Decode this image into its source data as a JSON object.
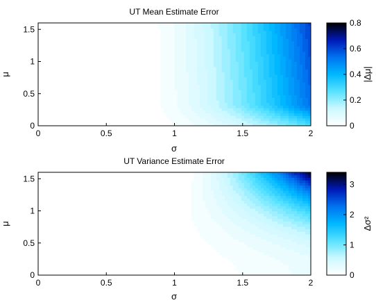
{
  "chart_data": [
    {
      "type": "heatmap",
      "subtype": "filled-contour",
      "title": "UT Mean Estimate Error",
      "xlabel": "σ",
      "ylabel": "μ",
      "xlim": [
        0,
        2
      ],
      "ylim": [
        0,
        1.6
      ],
      "x_ticks": [
        "0",
        "0.5",
        "1",
        "1.5",
        "2"
      ],
      "y_ticks": [
        "0",
        "0.5",
        "1",
        "1.5"
      ],
      "colorbar": {
        "label": "|Δμ|",
        "range": [
          0,
          0.8
        ],
        "ticks": [
          "0",
          "0.2",
          "0.4",
          "0.6",
          "0.8"
        ]
      },
      "colormap": [
        "#ffffff",
        "#ccf8ff",
        "#59e2ff",
        "#00b8ff",
        "#0073f0",
        "#0019b8",
        "#000000"
      ],
      "contour_levels": 30,
      "sample_values": [
        {
          "x": 0.7,
          "y": 1.55,
          "value": 0.0
        },
        {
          "x": 1.0,
          "y": 0.5,
          "value": 0.06
        },
        {
          "x": 1.5,
          "y": 0.3,
          "value": 0.18
        },
        {
          "x": 2.0,
          "y": 0.3,
          "value": 0.33
        },
        {
          "x": 2.0,
          "y": 1.55,
          "value": 0.6
        }
      ]
    },
    {
      "type": "heatmap",
      "subtype": "filled-contour",
      "title": "UT Variance Estimate Error",
      "xlabel": "σ",
      "ylabel": "μ",
      "xlim": [
        0,
        2
      ],
      "ylim": [
        0,
        1.6
      ],
      "x_ticks": [
        "0",
        "0.5",
        "1",
        "1.5",
        "2"
      ],
      "y_ticks": [
        "0",
        "0.5",
        "1",
        "1.5"
      ],
      "colorbar": {
        "label": "Δσ²",
        "range": [
          0,
          3.4
        ],
        "ticks": [
          "0",
          "1",
          "2",
          "3"
        ]
      },
      "colormap": [
        "#ffffff",
        "#ccf8ff",
        "#59e2ff",
        "#00b8ff",
        "#0073f0",
        "#0019b8",
        "#000000"
      ],
      "contour_levels": 30,
      "sample_values": [
        {
          "x": 0.8,
          "y": 0.2,
          "value": 0.03
        },
        {
          "x": 1.2,
          "y": 1.0,
          "value": 0.2
        },
        {
          "x": 1.5,
          "y": 1.2,
          "value": 0.9
        },
        {
          "x": 1.8,
          "y": 1.4,
          "value": 2.3
        },
        {
          "x": 2.0,
          "y": 1.6,
          "value": 3.4
        }
      ]
    }
  ]
}
